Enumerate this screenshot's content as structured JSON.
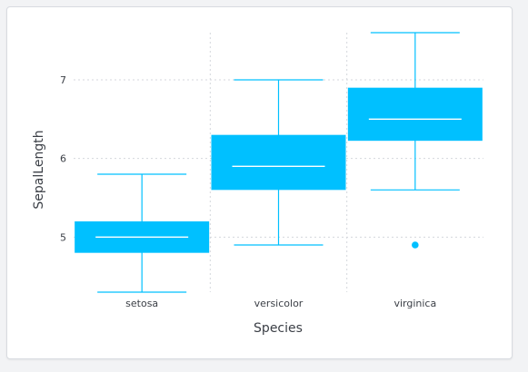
{
  "chart_data": {
    "type": "box",
    "xlabel": "Species",
    "ylabel": "SepalLength",
    "categories": [
      "setosa",
      "versicolor",
      "virginica"
    ],
    "ylim": [
      4.3,
      7.6
    ],
    "yticks": [
      5,
      6,
      7
    ],
    "grid": true,
    "color": "#00c0ff",
    "median_color": "#ffffff",
    "boxes": [
      {
        "category": "setosa",
        "min": 4.3,
        "q1": 4.8,
        "median": 5.0,
        "q3": 5.2,
        "max": 5.8,
        "outliers": []
      },
      {
        "category": "versicolor",
        "min": 4.9,
        "q1": 5.6,
        "median": 5.9,
        "q3": 6.3,
        "max": 7.0,
        "outliers": []
      },
      {
        "category": "virginica",
        "min": 5.6,
        "q1": 6.225,
        "median": 6.5,
        "q3": 6.9,
        "max": 7.6,
        "outliers": [
          4.9
        ]
      }
    ]
  }
}
